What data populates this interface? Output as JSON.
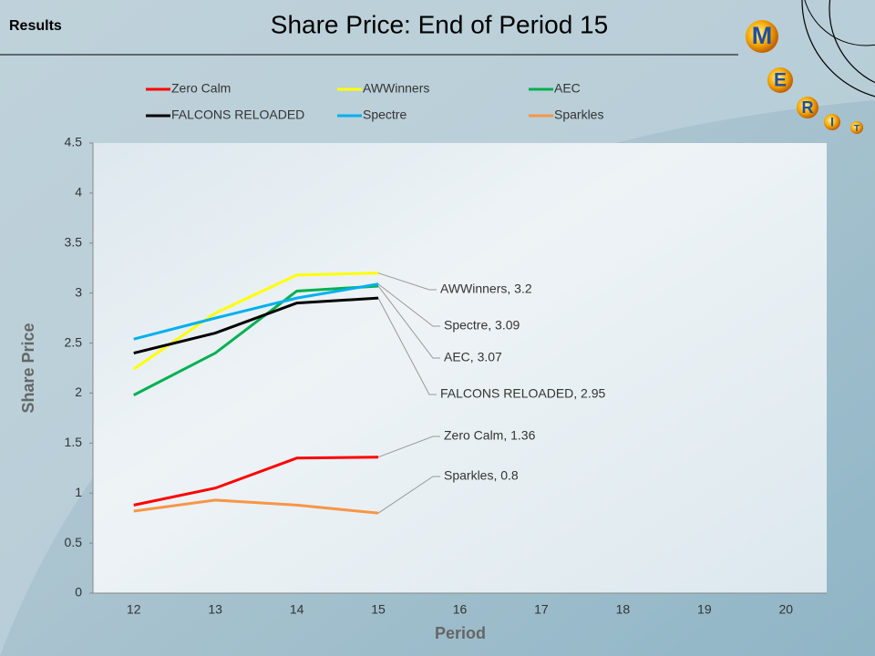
{
  "header": {
    "section": "Results",
    "logo_letters": [
      "M",
      "E",
      "R",
      "I",
      "T"
    ]
  },
  "chart_data": {
    "type": "line",
    "title": "Share Price: End of Period 15",
    "x_label": "Period",
    "y_label": "Share Price",
    "categories": [
      "12",
      "13",
      "14",
      "15",
      "16",
      "17",
      "18",
      "19",
      "20"
    ],
    "ylim": [
      0,
      4.5
    ],
    "yticks": [
      0,
      0.5,
      1,
      1.5,
      2,
      2.5,
      3,
      3.5,
      4,
      4.5
    ],
    "grid": false,
    "legend": "top",
    "series": [
      {
        "name": "Zero Calm",
        "color": "#ff0000",
        "values": [
          0.88,
          1.05,
          1.35,
          1.36,
          null,
          null,
          null,
          null,
          null
        ],
        "value_labels": [
          null,
          null,
          null,
          "Zero Calm, 1.36",
          null,
          null,
          null,
          null,
          null
        ]
      },
      {
        "name": "AWWinners",
        "color": "#ffff00",
        "values": [
          2.24,
          2.8,
          3.18,
          3.2,
          null,
          null,
          null,
          null,
          null
        ],
        "value_labels": [
          null,
          null,
          null,
          "AWWinners, 3.2",
          null,
          null,
          null,
          null,
          null
        ]
      },
      {
        "name": "AEC",
        "color": "#00b050",
        "values": [
          1.98,
          2.4,
          3.02,
          3.07,
          null,
          null,
          null,
          null,
          null
        ],
        "value_labels": [
          null,
          null,
          null,
          "AEC, 3.07",
          null,
          null,
          null,
          null,
          null
        ]
      },
      {
        "name": "FALCONS RELOADED",
        "color": "#000000",
        "values": [
          2.4,
          2.6,
          2.9,
          2.95,
          null,
          null,
          null,
          null,
          null
        ],
        "value_labels": [
          null,
          null,
          null,
          "FALCONS RELOADED, 2.95",
          null,
          null,
          null,
          null,
          null
        ]
      },
      {
        "name": "Spectre",
        "color": "#00b0f0",
        "values": [
          2.54,
          2.75,
          2.95,
          3.09,
          null,
          null,
          null,
          null,
          null
        ],
        "value_labels": [
          null,
          null,
          null,
          "Spectre, 3.09",
          null,
          null,
          null,
          null,
          null
        ]
      },
      {
        "name": "Sparkles",
        "color": "#f79646",
        "values": [
          0.82,
          0.93,
          0.88,
          0.8,
          null,
          null,
          null,
          null,
          null
        ],
        "value_labels": [
          null,
          null,
          null,
          "Sparkles, 0.8",
          null,
          null,
          null,
          null,
          null
        ]
      }
    ]
  }
}
